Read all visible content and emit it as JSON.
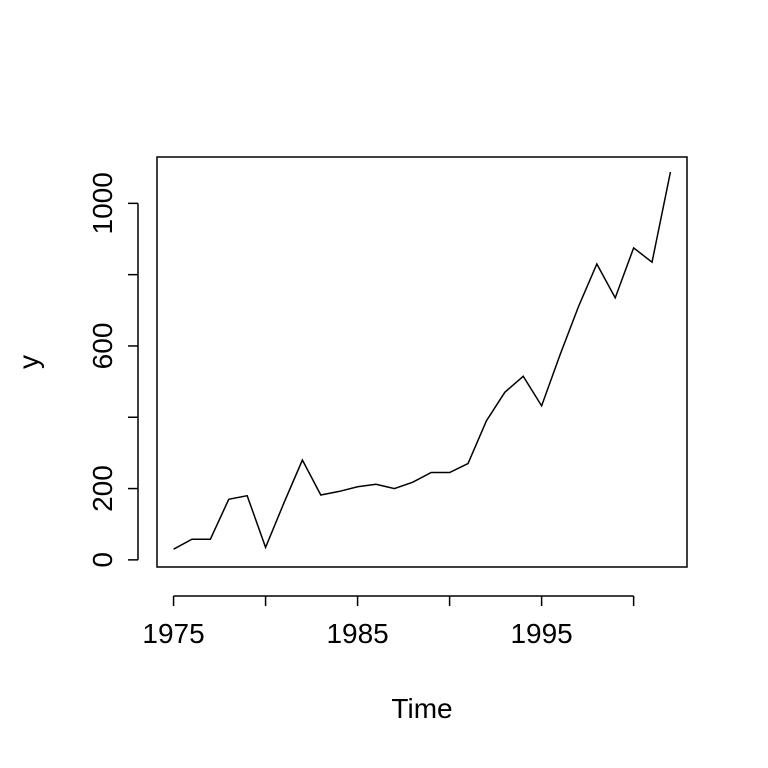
{
  "chart_data": {
    "type": "line",
    "title": "",
    "xlabel": "Time",
    "ylabel": "y",
    "xlim": [
      1974.1,
      2002.9
    ],
    "ylim": [
      -20,
      1130
    ],
    "x_ticks": [
      1975,
      1980,
      1985,
      1990,
      1995,
      2000
    ],
    "x_tick_labels": [
      "1975",
      "",
      "1985",
      "",
      "1995",
      ""
    ],
    "y_ticks": [
      0,
      200,
      400,
      600,
      800,
      1000
    ],
    "y_tick_labels": [
      "0",
      "200",
      "",
      "600",
      "",
      "1000"
    ],
    "grid": false,
    "line_color": "#000000",
    "x": [
      1975,
      1976,
      1977,
      1978,
      1979,
      1980,
      1981,
      1982,
      1983,
      1984,
      1985,
      1986,
      1987,
      1988,
      1989,
      1990,
      1991,
      1992,
      1993,
      1994,
      1995,
      1996,
      1997,
      1998,
      1999,
      2000,
      2001,
      2002
    ],
    "y": [
      30,
      58,
      58,
      170,
      180,
      35,
      160,
      280,
      182,
      192,
      205,
      212,
      200,
      218,
      245,
      245,
      270,
      390,
      470,
      515,
      432,
      575,
      710,
      830,
      735,
      875,
      835,
      1088
    ]
  }
}
